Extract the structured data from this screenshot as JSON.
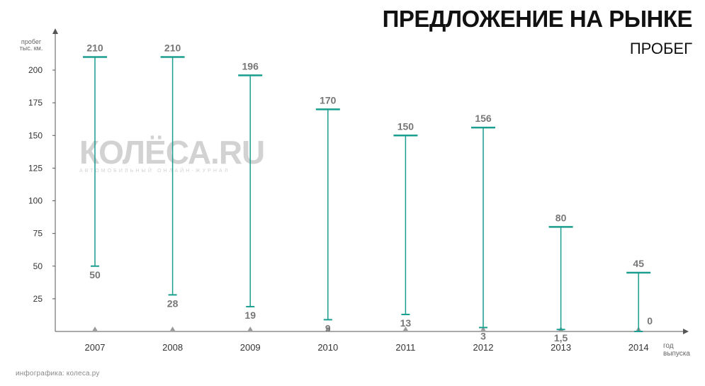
{
  "header": {
    "title": "ПРЕДЛОЖЕНИЕ НА РЫНКЕ",
    "subtitle": "ПРОБЕГ"
  },
  "watermark": {
    "logo": "КОЛЁСА.RU",
    "tagline": "АВТОМОБИЛЬНЫЙ ОНЛАЙН-ЖУРНАЛ"
  },
  "footer": {
    "credit": "инфографика: колеса.ру"
  },
  "colors": {
    "range_line": "#1a9e8f",
    "axis": "#555555",
    "label": "#777777",
    "text": "#111111"
  },
  "chart_data": {
    "type": "range",
    "title": "ПРЕДЛОЖЕНИЕ НА РЫНКЕ",
    "subtitle": "ПРОБЕГ",
    "ylabel": [
      "пробег",
      "тыс. км."
    ],
    "xlabel": [
      "год",
      "выпуска"
    ],
    "ylim": [
      0,
      230
    ],
    "yticks": [
      25,
      50,
      75,
      100,
      125,
      150,
      175,
      200
    ],
    "grid": false,
    "categories": [
      "2007",
      "2008",
      "2009",
      "2010",
      "2011",
      "2012",
      "2013",
      "2014"
    ],
    "series": [
      {
        "values_min": [
          50,
          28,
          19,
          9,
          13,
          3,
          1.5,
          0
        ],
        "values_max": [
          210,
          210,
          196,
          170,
          150,
          156,
          80,
          45
        ],
        "min_labels": [
          "50",
          "28",
          "19",
          "9",
          "13",
          "3",
          "1,5",
          "0"
        ],
        "max_labels": [
          "210",
          "210",
          "196",
          "170",
          "150",
          "156",
          "80",
          "45"
        ]
      }
    ]
  }
}
